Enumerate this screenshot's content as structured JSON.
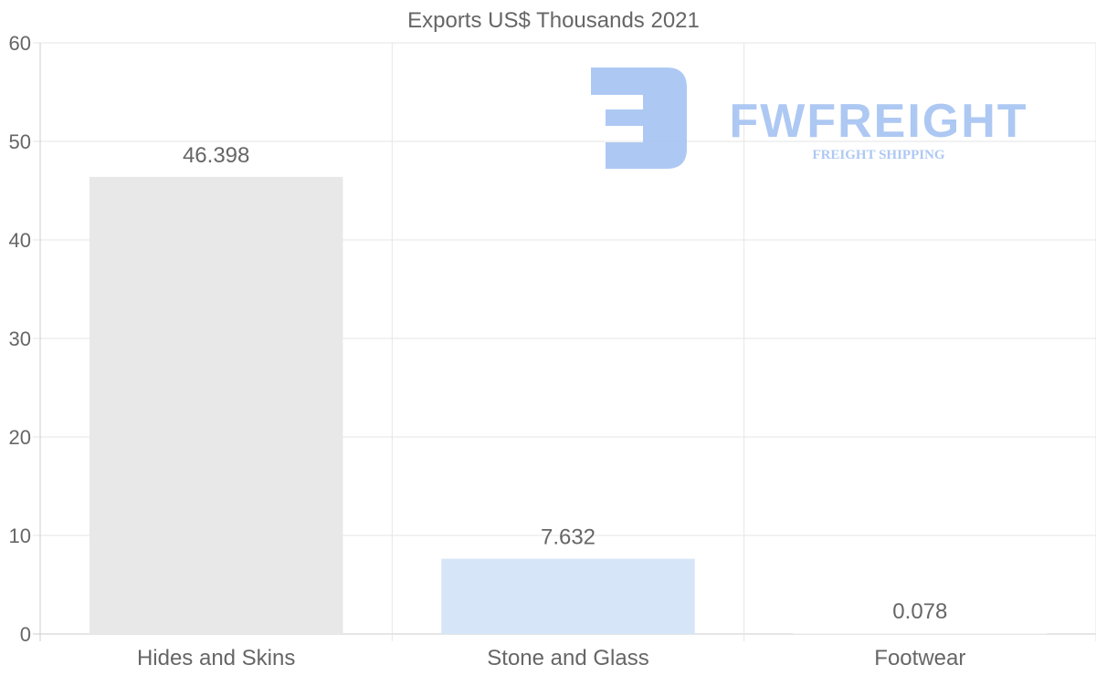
{
  "chart_data": {
    "type": "bar",
    "title": "Exports US$ Thousands 2021",
    "categories": [
      "Hides and Skins",
      "Stone and Glass",
      "Footwear"
    ],
    "values": [
      46.398,
      7.632,
      0.078
    ],
    "data_labels": [
      "46.398",
      "7.632",
      "0.078"
    ],
    "bar_colors": [
      "#e8e8e8",
      "#d6e6f8",
      "#f5f5f5"
    ],
    "xlabel": "",
    "ylabel": "",
    "ylim": [
      0,
      60
    ],
    "yticks": [
      0,
      10,
      20,
      30,
      40,
      50,
      60
    ],
    "grid": true,
    "legend": "none"
  },
  "watermark": {
    "brand": "FWFREIGHT",
    "tagline": "FREIGHT SHIPPING",
    "color": "#a9c6f2"
  }
}
